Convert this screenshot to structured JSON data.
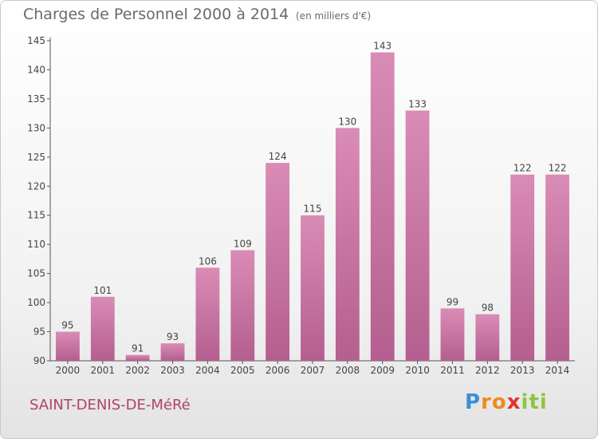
{
  "chart_data": {
    "type": "bar",
    "title": "Charges de Personnel 2000 à 2014",
    "unit_note": "(en milliers d'€)",
    "categories": [
      "2000",
      "2001",
      "2002",
      "2003",
      "2004",
      "2005",
      "2006",
      "2007",
      "2008",
      "2009",
      "2010",
      "2011",
      "2012",
      "2013",
      "2014"
    ],
    "values": [
      95,
      101,
      91,
      93,
      106,
      109,
      124,
      115,
      130,
      143,
      133,
      99,
      98,
      122,
      122
    ],
    "yticks": [
      90,
      95,
      100,
      105,
      110,
      115,
      120,
      125,
      130,
      135,
      140,
      145
    ],
    "ylim": [
      90,
      145
    ],
    "grid": false,
    "bar_color": "#d98cb5",
    "bar_color_dark": "#b45f8f"
  },
  "footer": {
    "place": "SAINT-DENIS-DE-MéRé",
    "place_color": "#b3416b"
  },
  "brand": {
    "letters": [
      "P",
      "r",
      "o",
      "x",
      "i",
      "t",
      "i"
    ],
    "colors": [
      "#3a8fd6",
      "#f08a1c",
      "#f08a1c",
      "#e2312f",
      "#8cc63f",
      "#8cc63f",
      "#8cc63f"
    ]
  }
}
